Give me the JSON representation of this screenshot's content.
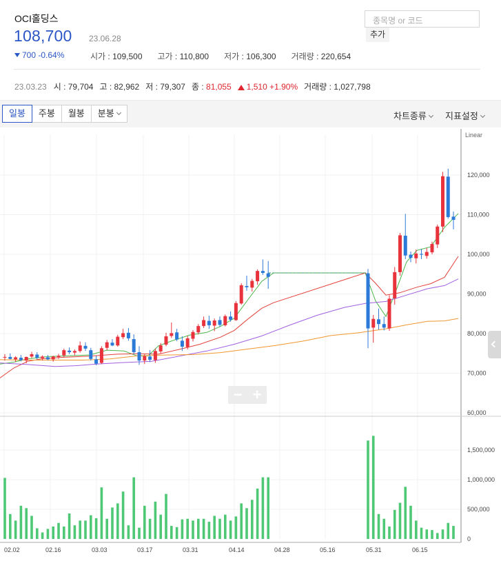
{
  "header": {
    "name": "OCI홀딩스",
    "price": "108,700",
    "date": "23.06.28",
    "change": "700 -0.64%",
    "stats": [
      {
        "label": "시가",
        "value": "109,500"
      },
      {
        "label": "고가",
        "value": "110,800"
      },
      {
        "label": "저가",
        "value": "106,300"
      },
      {
        "label": "거래량",
        "value": "220,654"
      }
    ]
  },
  "search": {
    "placeholder": "종목명 or 코드",
    "add_label": "추가"
  },
  "prev": {
    "date": "23.03.23",
    "open": "시 : 79,704",
    "high": "고 : 82,962",
    "low": "저 : 79,307",
    "close_label": "종 : ",
    "close_value": "81,055",
    "diff": "1,510 +1.90%",
    "volume": "거래량 : 1,027,798"
  },
  "toolbar": {
    "tabs": [
      "일봉",
      "주봉",
      "월봉",
      "분봉"
    ],
    "chart_type": "차트종류",
    "indicator": "지표설정"
  },
  "colors": {
    "up": "#e8323c",
    "down": "#2b7ad8",
    "volume": "#4ec874",
    "ma5": "#49b749",
    "ma20": "#e3413a",
    "ma60": "#a05fe0",
    "ma120": "#f0962e"
  },
  "chart_data": {
    "type": "candlestick",
    "scale": "Linear",
    "price_ticks": [
      120000,
      110000,
      100000,
      90000,
      80000,
      70000,
      60000
    ],
    "price_tick_labels": [
      "120,000",
      "110,000",
      "100,000",
      "90,000",
      "80,000",
      "70,000",
      "60,000"
    ],
    "volume_ticks": [
      1500000,
      1000000,
      500000,
      0
    ],
    "volume_tick_labels": [
      "1,500,000",
      "1,000,000",
      "500,000",
      "0"
    ],
    "x_labels": [
      "02.02",
      "02.16",
      "03.03",
      "03.17",
      "03.31",
      "04.14",
      "04.28",
      "05.16",
      "05.31",
      "06.15"
    ],
    "candles": [
      [
        74000,
        74800,
        73200,
        74100
      ],
      [
        74100,
        75000,
        73500,
        73600
      ],
      [
        73500,
        74300,
        72800,
        74000
      ],
      [
        73900,
        74600,
        73000,
        73300
      ],
      [
        73200,
        74200,
        72500,
        74100
      ],
      [
        74200,
        75400,
        73800,
        74800
      ],
      [
        74700,
        75300,
        73500,
        73900
      ],
      [
        73800,
        74500,
        73200,
        74200
      ],
      [
        74000,
        74600,
        73300,
        73500
      ],
      [
        73500,
        74400,
        72900,
        74200
      ],
      [
        74100,
        74900,
        73600,
        74400
      ],
      [
        74500,
        76200,
        74000,
        75800
      ],
      [
        75700,
        76500,
        74800,
        75300
      ],
      [
        75200,
        76000,
        74500,
        75600
      ],
      [
        75600,
        78000,
        75200,
        77000
      ],
      [
        76900,
        77800,
        75600,
        76200
      ],
      [
        75800,
        76400,
        73200,
        73600
      ],
      [
        73500,
        74400,
        72000,
        72400
      ],
      [
        72600,
        76800,
        72300,
        76300
      ],
      [
        76400,
        78400,
        75800,
        77800
      ],
      [
        77700,
        78600,
        76800,
        77000
      ],
      [
        77000,
        79700,
        76700,
        79200
      ],
      [
        79100,
        81200,
        78600,
        80100
      ],
      [
        80200,
        81400,
        78200,
        78800
      ],
      [
        78600,
        79800,
        74800,
        75300
      ],
      [
        75300,
        76800,
        72100,
        73200
      ],
      [
        73200,
        74800,
        72300,
        74300
      ],
      [
        74200,
        75800,
        72800,
        73400
      ],
      [
        73300,
        76200,
        72600,
        75600
      ],
      [
        75500,
        77600,
        75000,
        77000
      ],
      [
        77200,
        80200,
        76800,
        79300
      ],
      [
        79400,
        82800,
        78900,
        80100
      ],
      [
        80300,
        81200,
        78100,
        78500
      ],
      [
        78200,
        79300,
        75600,
        76700
      ],
      [
        76600,
        79400,
        76000,
        78800
      ],
      [
        78700,
        80900,
        78000,
        80400
      ],
      [
        80300,
        82400,
        79800,
        81900
      ],
      [
        81900,
        84300,
        81400,
        83400
      ],
      [
        83200,
        84500,
        81200,
        82100
      ],
      [
        82000,
        83800,
        80600,
        83300
      ],
      [
        83400,
        84300,
        81700,
        82200
      ],
      [
        82100,
        84800,
        81800,
        84400
      ],
      [
        84300,
        85600,
        83000,
        83500
      ],
      [
        83400,
        88200,
        83200,
        87700
      ],
      [
        87600,
        92700,
        87300,
        92200
      ],
      [
        92000,
        94600,
        90800,
        91700
      ],
      [
        91600,
        93800,
        90600,
        93300
      ],
      [
        93200,
        96200,
        92300,
        95800
      ],
      [
        95800,
        98700,
        94800,
        95300
      ],
      [
        95200,
        98300,
        91300,
        94300
      ],
      [
        95200,
        96300,
        76300,
        81300
      ],
      [
        81500,
        84700,
        77700,
        83700
      ],
      [
        83600,
        86300,
        81000,
        82400
      ],
      [
        82400,
        84300,
        80800,
        81500
      ],
      [
        81300,
        89700,
        80700,
        88800
      ],
      [
        88900,
        96800,
        87300,
        95500
      ],
      [
        95500,
        105400,
        94600,
        104800
      ],
      [
        104700,
        110200,
        98800,
        99700
      ],
      [
        99900,
        100700,
        98000,
        99100
      ],
      [
        99000,
        101200,
        97700,
        100200
      ],
      [
        100100,
        101400,
        98800,
        99900
      ],
      [
        99600,
        101600,
        98900,
        100600
      ],
      [
        100500,
        103200,
        100000,
        102600
      ],
      [
        102500,
        107500,
        101600,
        107000
      ],
      [
        107000,
        120800,
        105600,
        119700
      ],
      [
        119600,
        121600,
        109000,
        109400
      ],
      [
        109500,
        110800,
        106300,
        108700
      ]
    ],
    "volumes": [
      1030000,
      420000,
      310000,
      560000,
      520000,
      390000,
      180000,
      110000,
      170000,
      210000,
      270000,
      210000,
      430000,
      230000,
      310000,
      310000,
      400000,
      350000,
      870000,
      340000,
      530000,
      600000,
      800000,
      230000,
      1040000,
      190000,
      560000,
      340000,
      630000,
      410000,
      760000,
      220000,
      200000,
      330000,
      340000,
      310000,
      340000,
      340000,
      290000,
      390000,
      340000,
      410000,
      310000,
      380000,
      600000,
      520000,
      660000,
      850000,
      1040000,
      1040000,
      1660000,
      1740000,
      420000,
      340000,
      210000,
      490000,
      610000,
      880000,
      560000,
      310000,
      190000,
      160000,
      150000,
      100000,
      160000,
      270000,
      220000
    ],
    "gap_value": 95300,
    "ma_points": {
      "ma5": [
        [
          0,
          72300
        ],
        [
          20,
          72800
        ],
        [
          40,
          73600
        ],
        [
          70,
          74200
        ],
        [
          100,
          74400
        ],
        [
          130,
          74600
        ],
        [
          155,
          75800
        ],
        [
          180,
          75600
        ],
        [
          200,
          74300
        ],
        [
          215,
          74400
        ],
        [
          230,
          76900
        ],
        [
          250,
          78200
        ],
        [
          275,
          79600
        ],
        [
          300,
          80300
        ],
        [
          320,
          81800
        ],
        [
          340,
          83900
        ],
        [
          360,
          88600
        ],
        [
          380,
          93200
        ],
        [
          397,
          95300
        ],
        [
          530,
          95300
        ],
        [
          545,
          88200
        ],
        [
          560,
          84300
        ],
        [
          575,
          91000
        ],
        [
          590,
          98100
        ],
        [
          605,
          101000
        ],
        [
          625,
          101900
        ],
        [
          645,
          106800
        ],
        [
          665,
          110300
        ]
      ],
      "ma20": [
        [
          0,
          68800
        ],
        [
          20,
          71300
        ],
        [
          40,
          73000
        ],
        [
          60,
          73600
        ],
        [
          90,
          74000
        ],
        [
          130,
          74300
        ],
        [
          170,
          74800
        ],
        [
          200,
          74900
        ],
        [
          230,
          74800
        ],
        [
          260,
          76000
        ],
        [
          290,
          77300
        ],
        [
          320,
          79100
        ],
        [
          340,
          80800
        ],
        [
          360,
          83700
        ],
        [
          380,
          86400
        ],
        [
          397,
          87800
        ],
        [
          530,
          95300
        ],
        [
          545,
          92700
        ],
        [
          560,
          89700
        ],
        [
          580,
          90300
        ],
        [
          605,
          91700
        ],
        [
          625,
          92600
        ],
        [
          645,
          94200
        ],
        [
          665,
          99500
        ]
      ],
      "ma60": [
        [
          0,
          72600
        ],
        [
          40,
          72200
        ],
        [
          80,
          71700
        ],
        [
          110,
          71900
        ],
        [
          140,
          72300
        ],
        [
          180,
          72700
        ],
        [
          220,
          73000
        ],
        [
          260,
          74300
        ],
        [
          300,
          75600
        ],
        [
          340,
          77300
        ],
        [
          380,
          79400
        ],
        [
          420,
          82100
        ],
        [
          460,
          84600
        ],
        [
          500,
          86600
        ],
        [
          530,
          87600
        ],
        [
          560,
          88100
        ],
        [
          590,
          89700
        ],
        [
          620,
          91300
        ],
        [
          645,
          92100
        ],
        [
          665,
          93800
        ]
      ],
      "ma120": [
        [
          0,
          73400
        ],
        [
          40,
          73300
        ],
        [
          80,
          73300
        ],
        [
          120,
          73300
        ],
        [
          160,
          73600
        ],
        [
          200,
          74400
        ],
        [
          240,
          74600
        ],
        [
          280,
          74700
        ],
        [
          320,
          75200
        ],
        [
          360,
          76100
        ],
        [
          400,
          77000
        ],
        [
          440,
          78100
        ],
        [
          480,
          79500
        ],
        [
          520,
          80200
        ],
        [
          560,
          81200
        ],
        [
          590,
          82200
        ],
        [
          620,
          83100
        ],
        [
          645,
          83200
        ],
        [
          665,
          83800
        ]
      ]
    }
  }
}
